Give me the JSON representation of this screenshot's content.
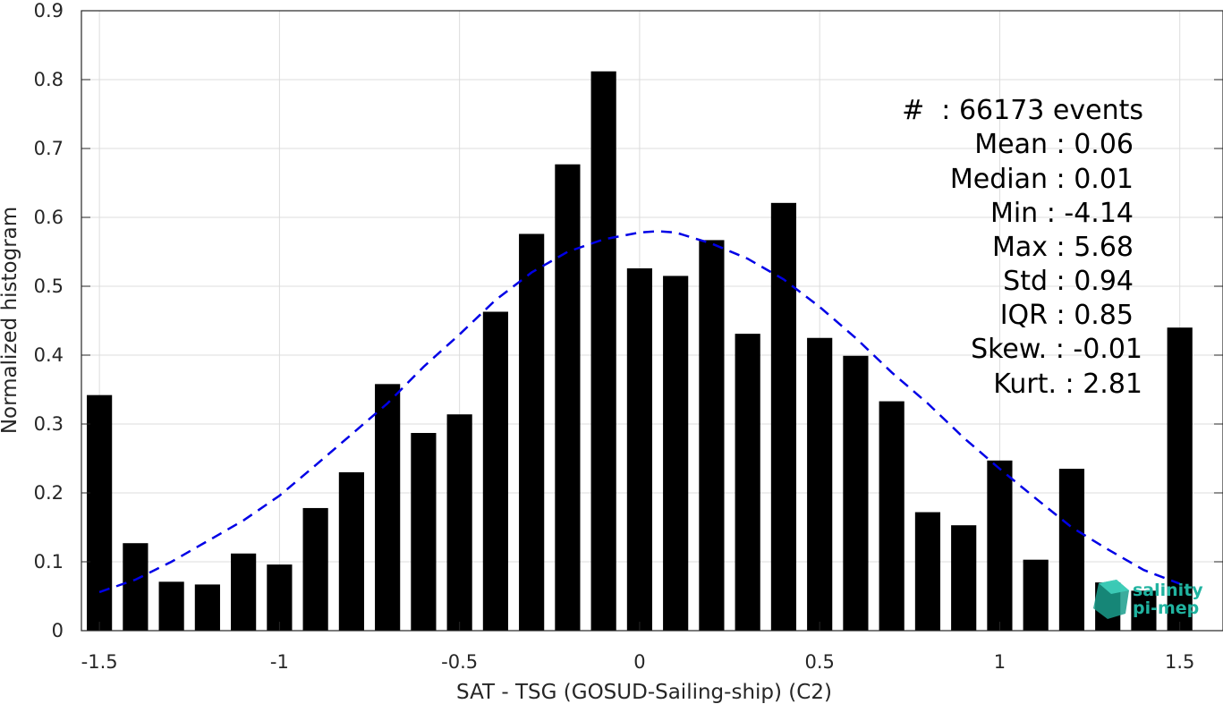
{
  "chart_data": {
    "type": "bar",
    "title": "",
    "xlabel": "SAT - TSG (GOSUD-Sailing-ship) (C2)",
    "ylabel": "Normalized histogram",
    "xlim": [
      -1.55,
      1.62
    ],
    "ylim": [
      0,
      0.9
    ],
    "grid": true,
    "bar_color": "#000000",
    "fit_color": "#0000e6",
    "x": [
      -1.5,
      -1.4,
      -1.3,
      -1.2,
      -1.1,
      -1.0,
      -0.9,
      -0.8,
      -0.7,
      -0.6,
      -0.5,
      -0.4,
      -0.3,
      -0.2,
      -0.1,
      0.0,
      0.1,
      0.2,
      0.3,
      0.4,
      0.5,
      0.6,
      0.7,
      0.8,
      0.9,
      1.0,
      1.1,
      1.2,
      1.3,
      1.4,
      1.5
    ],
    "values": [
      0.342,
      0.127,
      0.071,
      0.067,
      0.112,
      0.096,
      0.178,
      0.23,
      0.358,
      0.287,
      0.314,
      0.463,
      0.576,
      0.677,
      0.812,
      0.526,
      0.515,
      0.567,
      0.431,
      0.621,
      0.425,
      0.399,
      0.333,
      0.172,
      0.153,
      0.247,
      0.103,
      0.235,
      0.07,
      0.058,
      0.44
    ],
    "fit_curve": {
      "style": "dashed",
      "x": [
        -1.5,
        -1.4,
        -1.3,
        -1.2,
        -1.1,
        -1.0,
        -0.9,
        -0.8,
        -0.7,
        -0.6,
        -0.5,
        -0.4,
        -0.3,
        -0.2,
        -0.1,
        0.0,
        0.05,
        0.1,
        0.2,
        0.3,
        0.4,
        0.5,
        0.6,
        0.7,
        0.8,
        0.9,
        1.0,
        1.1,
        1.2,
        1.3,
        1.4,
        1.5
      ],
      "y": [
        0.056,
        0.074,
        0.1,
        0.13,
        0.16,
        0.196,
        0.24,
        0.285,
        0.33,
        0.383,
        0.43,
        0.48,
        0.52,
        0.55,
        0.568,
        0.578,
        0.58,
        0.578,
        0.562,
        0.54,
        0.51,
        0.47,
        0.425,
        0.375,
        0.33,
        0.28,
        0.235,
        0.192,
        0.15,
        0.118,
        0.088,
        0.068
      ]
    },
    "xticks": [
      "-1.5",
      "-1",
      "-0.5",
      "0",
      "0.5",
      "1",
      "1.5"
    ],
    "xtick_values": [
      -1.5,
      -1.0,
      -0.5,
      0.0,
      0.5,
      1.0,
      1.5
    ],
    "yticks": [
      "0",
      "0.1",
      "0.2",
      "0.3",
      "0.4",
      "0.5",
      "0.6",
      "0.7",
      "0.8",
      "0.9"
    ],
    "ytick_values": [
      0,
      0.1,
      0.2,
      0.3,
      0.4,
      0.5,
      0.6,
      0.7,
      0.8,
      0.9
    ]
  },
  "stats": {
    "events": "#  : 66173 events",
    "mean": "Mean : 0.06",
    "median": "Median : 0.01",
    "min": "Min : -4.14",
    "max": "Max : 5.68",
    "std": "Std : 0.94",
    "iqr": "IQR : 0.85",
    "skew": "Skew. : -0.01",
    "kurt": "Kurt. : 2.81"
  },
  "logo": {
    "line1": "salinity",
    "line2": "pi-mep",
    "color": "#20b3a0"
  }
}
